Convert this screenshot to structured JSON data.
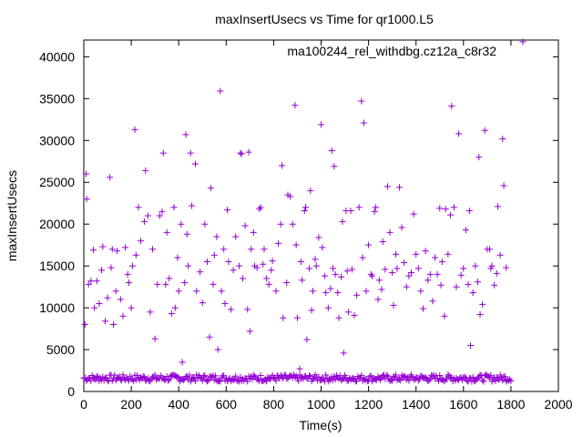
{
  "chart_data": {
    "type": "scatter",
    "title": "maxInsertUsecs vs Time for qr1000.L5",
    "xlabel": "Time(s)",
    "ylabel": "maxInsertUsecs",
    "xlim": [
      0,
      2000
    ],
    "ylim": [
      0,
      42000
    ],
    "xticks": [
      0,
      200,
      400,
      600,
      800,
      1000,
      1200,
      1400,
      1600,
      1800,
      2000
    ],
    "yticks": [
      0,
      5000,
      10000,
      15000,
      20000,
      25000,
      30000,
      35000,
      40000
    ],
    "grid": false,
    "legend_position": "top-right",
    "series": [
      {
        "name": "ma100244_rel_withdbg.cz12a_c8r32",
        "color": "#9400d3",
        "marker": "+",
        "baseline_band": {
          "x_from": 0,
          "x_to": 1800,
          "step": 5,
          "y_low": 1200,
          "y_high": 2000
        },
        "points": [
          [
            5,
            8000
          ],
          [
            10,
            26000
          ],
          [
            12,
            23000
          ],
          [
            20,
            12800
          ],
          [
            30,
            13200
          ],
          [
            40,
            16900
          ],
          [
            45,
            10000
          ],
          [
            55,
            13200
          ],
          [
            65,
            10500
          ],
          [
            75,
            14500
          ],
          [
            80,
            17300
          ],
          [
            90,
            8400
          ],
          [
            100,
            11200
          ],
          [
            110,
            25600
          ],
          [
            115,
            14800
          ],
          [
            120,
            17000
          ],
          [
            125,
            8000
          ],
          [
            135,
            12000
          ],
          [
            140,
            16800
          ],
          [
            155,
            11000
          ],
          [
            165,
            9000
          ],
          [
            175,
            17200
          ],
          [
            185,
            14000
          ],
          [
            190,
            13000
          ],
          [
            200,
            10000
          ],
          [
            205,
            15000
          ],
          [
            215,
            31300
          ],
          [
            220,
            16300
          ],
          [
            230,
            22000
          ],
          [
            240,
            18000
          ],
          [
            255,
            20300
          ],
          [
            260,
            26400
          ],
          [
            270,
            21000
          ],
          [
            280,
            9500
          ],
          [
            290,
            17000
          ],
          [
            300,
            6300
          ],
          [
            310,
            12800
          ],
          [
            320,
            21000
          ],
          [
            330,
            21500
          ],
          [
            335,
            28500
          ],
          [
            345,
            12800
          ],
          [
            350,
            19000
          ],
          [
            360,
            13500
          ],
          [
            370,
            9300
          ],
          [
            380,
            22000
          ],
          [
            385,
            10000
          ],
          [
            395,
            16000
          ],
          [
            400,
            12000
          ],
          [
            410,
            20000
          ],
          [
            415,
            3500
          ],
          [
            425,
            13000
          ],
          [
            430,
            30700
          ],
          [
            435,
            18800
          ],
          [
            440,
            15000
          ],
          [
            450,
            28500
          ],
          [
            455,
            22200
          ],
          [
            470,
            27200
          ],
          [
            475,
            12000
          ],
          [
            490,
            14300
          ],
          [
            500,
            10600
          ],
          [
            510,
            20000
          ],
          [
            520,
            15500
          ],
          [
            530,
            6500
          ],
          [
            535,
            24300
          ],
          [
            545,
            12800
          ],
          [
            550,
            16300
          ],
          [
            560,
            18500
          ],
          [
            565,
            5000
          ],
          [
            575,
            35900
          ],
          [
            580,
            12000
          ],
          [
            590,
            17000
          ],
          [
            595,
            10500
          ],
          [
            605,
            21700
          ],
          [
            610,
            15500
          ],
          [
            620,
            9800
          ],
          [
            630,
            14500
          ],
          [
            640,
            18500
          ],
          [
            655,
            15000
          ],
          [
            660,
            28500
          ],
          [
            665,
            28400
          ],
          [
            670,
            13500
          ],
          [
            680,
            19800
          ],
          [
            690,
            9800
          ],
          [
            695,
            28600
          ],
          [
            700,
            7200
          ],
          [
            705,
            17000
          ],
          [
            715,
            19000
          ],
          [
            720,
            15000
          ],
          [
            730,
            14800
          ],
          [
            740,
            21800
          ],
          [
            745,
            22000
          ],
          [
            755,
            15200
          ],
          [
            760,
            17000
          ],
          [
            770,
            13500
          ],
          [
            780,
            12800
          ],
          [
            790,
            14500
          ],
          [
            795,
            15600
          ],
          [
            810,
            12000
          ],
          [
            820,
            17700
          ],
          [
            830,
            20000
          ],
          [
            835,
            27000
          ],
          [
            840,
            8800
          ],
          [
            855,
            13000
          ],
          [
            860,
            23500
          ],
          [
            870,
            23300
          ],
          [
            880,
            20000
          ],
          [
            890,
            34200
          ],
          [
            895,
            17500
          ],
          [
            900,
            8800
          ],
          [
            910,
            2700
          ],
          [
            915,
            15500
          ],
          [
            920,
            13300
          ],
          [
            930,
            21600
          ],
          [
            935,
            22000
          ],
          [
            940,
            6200
          ],
          [
            950,
            14700
          ],
          [
            955,
            24000
          ],
          [
            960,
            9700
          ],
          [
            965,
            12000
          ],
          [
            975,
            15800
          ],
          [
            980,
            15000
          ],
          [
            990,
            18400
          ],
          [
            1000,
            31900
          ],
          [
            1005,
            17200
          ],
          [
            1015,
            13800
          ],
          [
            1020,
            11800
          ],
          [
            1030,
            10000
          ],
          [
            1040,
            12300
          ],
          [
            1045,
            28800
          ],
          [
            1050,
            14700
          ],
          [
            1055,
            26900
          ],
          [
            1060,
            14000
          ],
          [
            1070,
            11800
          ],
          [
            1075,
            8800
          ],
          [
            1085,
            13700
          ],
          [
            1090,
            20300
          ],
          [
            1095,
            4600
          ],
          [
            1105,
            21600
          ],
          [
            1110,
            14400
          ],
          [
            1115,
            9500
          ],
          [
            1125,
            21600
          ],
          [
            1130,
            14600
          ],
          [
            1140,
            9100
          ],
          [
            1150,
            11500
          ],
          [
            1160,
            22000
          ],
          [
            1170,
            34700
          ],
          [
            1175,
            16000
          ],
          [
            1180,
            32100
          ],
          [
            1190,
            12000
          ],
          [
            1200,
            17500
          ],
          [
            1210,
            14000
          ],
          [
            1215,
            13800
          ],
          [
            1225,
            21500
          ],
          [
            1230,
            22000
          ],
          [
            1240,
            11000
          ],
          [
            1245,
            13300
          ],
          [
            1255,
            12200
          ],
          [
            1260,
            17900
          ],
          [
            1270,
            14600
          ],
          [
            1280,
            24500
          ],
          [
            1290,
            19000
          ],
          [
            1300,
            14200
          ],
          [
            1305,
            10300
          ],
          [
            1315,
            16400
          ],
          [
            1320,
            14700
          ],
          [
            1330,
            24400
          ],
          [
            1340,
            19600
          ],
          [
            1350,
            15400
          ],
          [
            1360,
            12500
          ],
          [
            1370,
            13800
          ],
          [
            1380,
            14200
          ],
          [
            1390,
            21200
          ],
          [
            1400,
            16400
          ],
          [
            1410,
            14700
          ],
          [
            1420,
            12000
          ],
          [
            1430,
            9900
          ],
          [
            1440,
            16800
          ],
          [
            1450,
            13300
          ],
          [
            1460,
            14000
          ],
          [
            1470,
            10800
          ],
          [
            1480,
            16000
          ],
          [
            1490,
            14000
          ],
          [
            1500,
            21900
          ],
          [
            1505,
            12700
          ],
          [
            1510,
            15500
          ],
          [
            1520,
            9000
          ],
          [
            1525,
            21800
          ],
          [
            1535,
            16400
          ],
          [
            1545,
            21100
          ],
          [
            1550,
            34100
          ],
          [
            1560,
            22000
          ],
          [
            1570,
            12500
          ],
          [
            1580,
            30800
          ],
          [
            1590,
            13900
          ],
          [
            1600,
            14700
          ],
          [
            1610,
            19300
          ],
          [
            1620,
            12800
          ],
          [
            1625,
            21600
          ],
          [
            1630,
            5500
          ],
          [
            1640,
            11800
          ],
          [
            1650,
            15000
          ],
          [
            1660,
            13100
          ],
          [
            1665,
            28000
          ],
          [
            1670,
            9200
          ],
          [
            1680,
            10400
          ],
          [
            1690,
            31200
          ],
          [
            1700,
            17000
          ],
          [
            1710,
            17000
          ],
          [
            1715,
            14700
          ],
          [
            1720,
            15000
          ],
          [
            1730,
            12700
          ],
          [
            1740,
            14100
          ],
          [
            1745,
            22100
          ],
          [
            1755,
            16300
          ],
          [
            1765,
            30200
          ],
          [
            1770,
            24600
          ],
          [
            1780,
            14800
          ]
        ],
        "legend_marker_point": [
          1850,
          41800
        ]
      }
    ]
  }
}
